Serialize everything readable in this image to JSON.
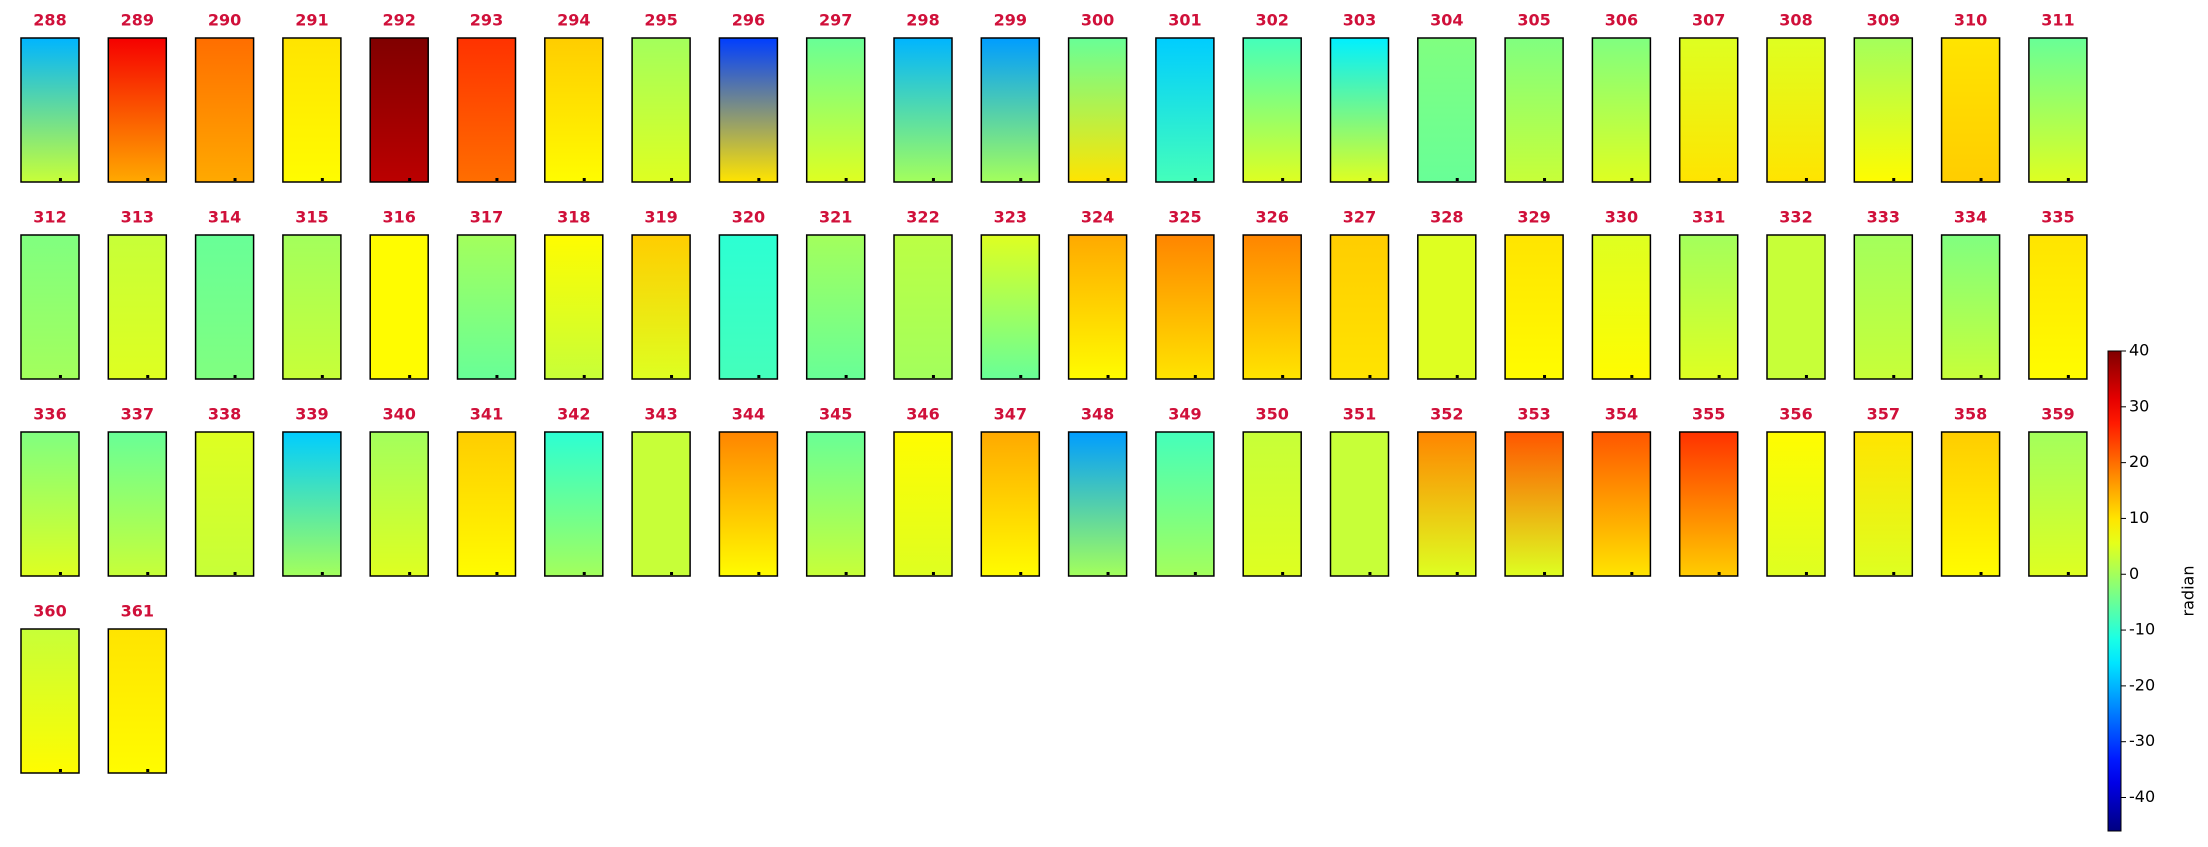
{
  "chart_data": {
    "type": "image-grid",
    "panels": [
      {
        "title": "288",
        "values": [
          -20,
          3
        ]
      },
      {
        "title": "289",
        "values": [
          30,
          15
        ]
      },
      {
        "title": "290",
        "values": [
          20,
          15
        ]
      },
      {
        "title": "291",
        "values": [
          10,
          8
        ]
      },
      {
        "title": "292",
        "values": [
          40,
          35
        ]
      },
      {
        "title": "293",
        "values": [
          25,
          20
        ]
      },
      {
        "title": "294",
        "values": [
          12,
          8
        ]
      },
      {
        "title": "295",
        "values": [
          0,
          5
        ]
      },
      {
        "title": "296",
        "values": [
          -30,
          10
        ]
      },
      {
        "title": "297",
        "values": [
          -5,
          5
        ]
      },
      {
        "title": "298",
        "values": [
          -20,
          0
        ]
      },
      {
        "title": "299",
        "values": [
          -22,
          0
        ]
      },
      {
        "title": "300",
        "values": [
          -5,
          10
        ]
      },
      {
        "title": "301",
        "values": [
          -18,
          -8
        ]
      },
      {
        "title": "302",
        "values": [
          -8,
          5
        ]
      },
      {
        "title": "303",
        "values": [
          -15,
          5
        ]
      },
      {
        "title": "304",
        "values": [
          -3,
          -5
        ]
      },
      {
        "title": "305",
        "values": [
          -3,
          3
        ]
      },
      {
        "title": "306",
        "values": [
          -3,
          5
        ]
      },
      {
        "title": "307",
        "values": [
          5,
          10
        ]
      },
      {
        "title": "308",
        "values": [
          5,
          10
        ]
      },
      {
        "title": "309",
        "values": [
          0,
          8
        ]
      },
      {
        "title": "310",
        "values": [
          10,
          12
        ]
      },
      {
        "title": "311",
        "values": [
          -5,
          5
        ]
      },
      {
        "title": "312",
        "values": [
          -3,
          0
        ]
      },
      {
        "title": "313",
        "values": [
          3,
          5
        ]
      },
      {
        "title": "314",
        "values": [
          -5,
          -3
        ]
      },
      {
        "title": "315",
        "values": [
          0,
          3
        ]
      },
      {
        "title": "316",
        "values": [
          8,
          8
        ]
      },
      {
        "title": "317",
        "values": [
          0,
          -5
        ]
      },
      {
        "title": "318",
        "values": [
          8,
          3
        ]
      },
      {
        "title": "319",
        "values": [
          12,
          5
        ]
      },
      {
        "title": "320",
        "values": [
          -10,
          -8
        ]
      },
      {
        "title": "321",
        "values": [
          0,
          -5
        ]
      },
      {
        "title": "322",
        "values": [
          2,
          0
        ]
      },
      {
        "title": "323",
        "values": [
          5,
          -5
        ]
      },
      {
        "title": "324",
        "values": [
          15,
          8
        ]
      },
      {
        "title": "325",
        "values": [
          18,
          10
        ]
      },
      {
        "title": "326",
        "values": [
          18,
          10
        ]
      },
      {
        "title": "327",
        "values": [
          12,
          10
        ]
      },
      {
        "title": "328",
        "values": [
          5,
          5
        ]
      },
      {
        "title": "329",
        "values": [
          10,
          8
        ]
      },
      {
        "title": "330",
        "values": [
          5,
          8
        ]
      },
      {
        "title": "331",
        "values": [
          0,
          5
        ]
      },
      {
        "title": "332",
        "values": [
          3,
          3
        ]
      },
      {
        "title": "333",
        "values": [
          0,
          3
        ]
      },
      {
        "title": "334",
        "values": [
          -3,
          3
        ]
      },
      {
        "title": "335",
        "values": [
          10,
          8
        ]
      },
      {
        "title": "336",
        "values": [
          -3,
          5
        ]
      },
      {
        "title": "337",
        "values": [
          -5,
          3
        ]
      },
      {
        "title": "338",
        "values": [
          5,
          3
        ]
      },
      {
        "title": "339",
        "values": [
          -18,
          0
        ]
      },
      {
        "title": "340",
        "values": [
          0,
          5
        ]
      },
      {
        "title": "341",
        "values": [
          12,
          8
        ]
      },
      {
        "title": "342",
        "values": [
          -10,
          0
        ]
      },
      {
        "title": "343",
        "values": [
          3,
          3
        ]
      },
      {
        "title": "344",
        "values": [
          18,
          8
        ]
      },
      {
        "title": "345",
        "values": [
          -5,
          3
        ]
      },
      {
        "title": "346",
        "values": [
          8,
          5
        ]
      },
      {
        "title": "347",
        "values": [
          15,
          8
        ]
      },
      {
        "title": "348",
        "values": [
          -22,
          0
        ]
      },
      {
        "title": "349",
        "values": [
          -8,
          0
        ]
      },
      {
        "title": "350",
        "values": [
          3,
          5
        ]
      },
      {
        "title": "351",
        "values": [
          3,
          3
        ]
      },
      {
        "title": "352",
        "values": [
          18,
          5
        ]
      },
      {
        "title": "353",
        "values": [
          22,
          5
        ]
      },
      {
        "title": "354",
        "values": [
          22,
          10
        ]
      },
      {
        "title": "355",
        "values": [
          25,
          12
        ]
      },
      {
        "title": "356",
        "values": [
          8,
          5
        ]
      },
      {
        "title": "357",
        "values": [
          10,
          5
        ]
      },
      {
        "title": "358",
        "values": [
          12,
          8
        ]
      },
      {
        "title": "359",
        "values": [
          0,
          5
        ]
      },
      {
        "title": "360",
        "values": [
          3,
          8
        ]
      },
      {
        "title": "361",
        "values": [
          10,
          8
        ]
      }
    ],
    "colorbar": {
      "label": "radian",
      "ylim": [
        -46,
        40
      ],
      "yticks": [
        -40,
        -30,
        -20,
        -10,
        0,
        10,
        20,
        30,
        40
      ],
      "colormap": "jet"
    }
  }
}
